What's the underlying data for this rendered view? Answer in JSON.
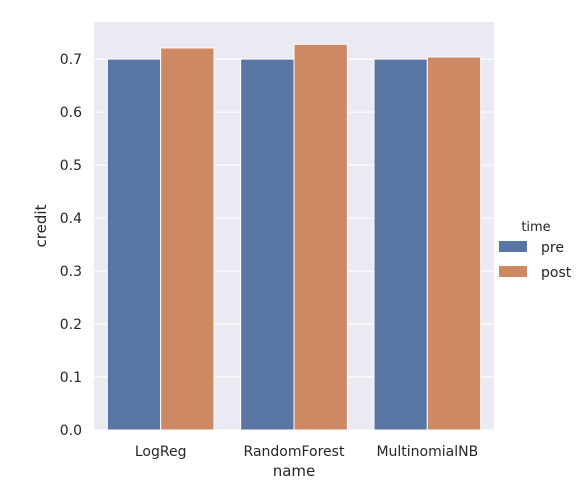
{
  "chart_data": {
    "type": "bar",
    "categories": [
      "LogReg",
      "RandomForest",
      "MultinomialNB"
    ],
    "series": [
      {
        "name": "pre",
        "values": [
          0.7,
          0.7,
          0.7
        ],
        "color": "#5975a4"
      },
      {
        "name": "post",
        "values": [
          0.721,
          0.728,
          0.704
        ],
        "color": "#cc8963"
      }
    ],
    "xlabel": "name",
    "ylabel": "credit",
    "ylim": [
      0,
      0.77
    ],
    "yticks": [
      "0.0",
      "0.1",
      "0.2",
      "0.3",
      "0.4",
      "0.5",
      "0.6",
      "0.7"
    ],
    "grid": true,
    "legend": {
      "title": "time",
      "placement": "right"
    },
    "background": "#eaeaf2"
  }
}
